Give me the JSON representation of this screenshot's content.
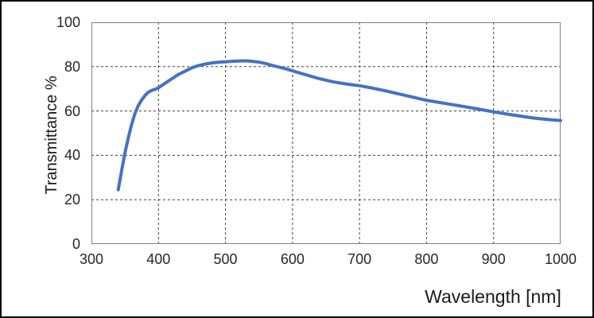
{
  "frame": {
    "background_color": "#ffffff",
    "border_color": "#000000"
  },
  "chart_data": {
    "type": "line",
    "title": "",
    "xlabel": "Wavelength [nm]",
    "ylabel": "Transmittance %",
    "xlim": [
      300,
      1000
    ],
    "ylim": [
      0,
      100
    ],
    "x_ticks": [
      300,
      400,
      500,
      600,
      700,
      800,
      900,
      1000
    ],
    "y_ticks": [
      0,
      20,
      40,
      60,
      80,
      100
    ],
    "grid": {
      "style": "dashed",
      "color": "#3f3f3f"
    },
    "axis_border_color": "#7f7f7f",
    "legend_position": "none",
    "series": [
      {
        "name": "transmittance-curve",
        "color": "#4472C4",
        "stroke_width": 4,
        "points": [
          [
            340,
            24.5
          ],
          [
            345,
            33
          ],
          [
            350,
            41
          ],
          [
            355,
            48
          ],
          [
            360,
            54
          ],
          [
            365,
            59
          ],
          [
            370,
            62.5
          ],
          [
            375,
            65
          ],
          [
            380,
            67
          ],
          [
            385,
            68.5
          ],
          [
            390,
            69.3
          ],
          [
            395,
            69.8
          ],
          [
            400,
            70.5
          ],
          [
            410,
            72.5
          ],
          [
            420,
            74.5
          ],
          [
            430,
            76.5
          ],
          [
            440,
            78
          ],
          [
            450,
            79.5
          ],
          [
            460,
            80.5
          ],
          [
            470,
            81.2
          ],
          [
            480,
            81.7
          ],
          [
            490,
            82
          ],
          [
            500,
            82.2
          ],
          [
            510,
            82.4
          ],
          [
            520,
            82.5
          ],
          [
            530,
            82.6
          ],
          [
            540,
            82.4
          ],
          [
            550,
            82
          ],
          [
            560,
            81.4
          ],
          [
            570,
            80.5
          ],
          [
            580,
            79.8
          ],
          [
            590,
            79
          ],
          [
            600,
            78.1
          ],
          [
            620,
            76.3
          ],
          [
            640,
            74.6
          ],
          [
            660,
            73.2
          ],
          [
            680,
            72.2
          ],
          [
            700,
            71.4
          ],
          [
            720,
            70.3
          ],
          [
            740,
            69
          ],
          [
            760,
            67.6
          ],
          [
            780,
            66.2
          ],
          [
            800,
            64.8
          ],
          [
            820,
            63.8
          ],
          [
            840,
            62.8
          ],
          [
            860,
            61.8
          ],
          [
            880,
            60.7
          ],
          [
            900,
            59.6
          ],
          [
            920,
            58.6
          ],
          [
            940,
            57.7
          ],
          [
            960,
            56.8
          ],
          [
            980,
            56.2
          ],
          [
            1000,
            55.7
          ]
        ]
      }
    ]
  }
}
